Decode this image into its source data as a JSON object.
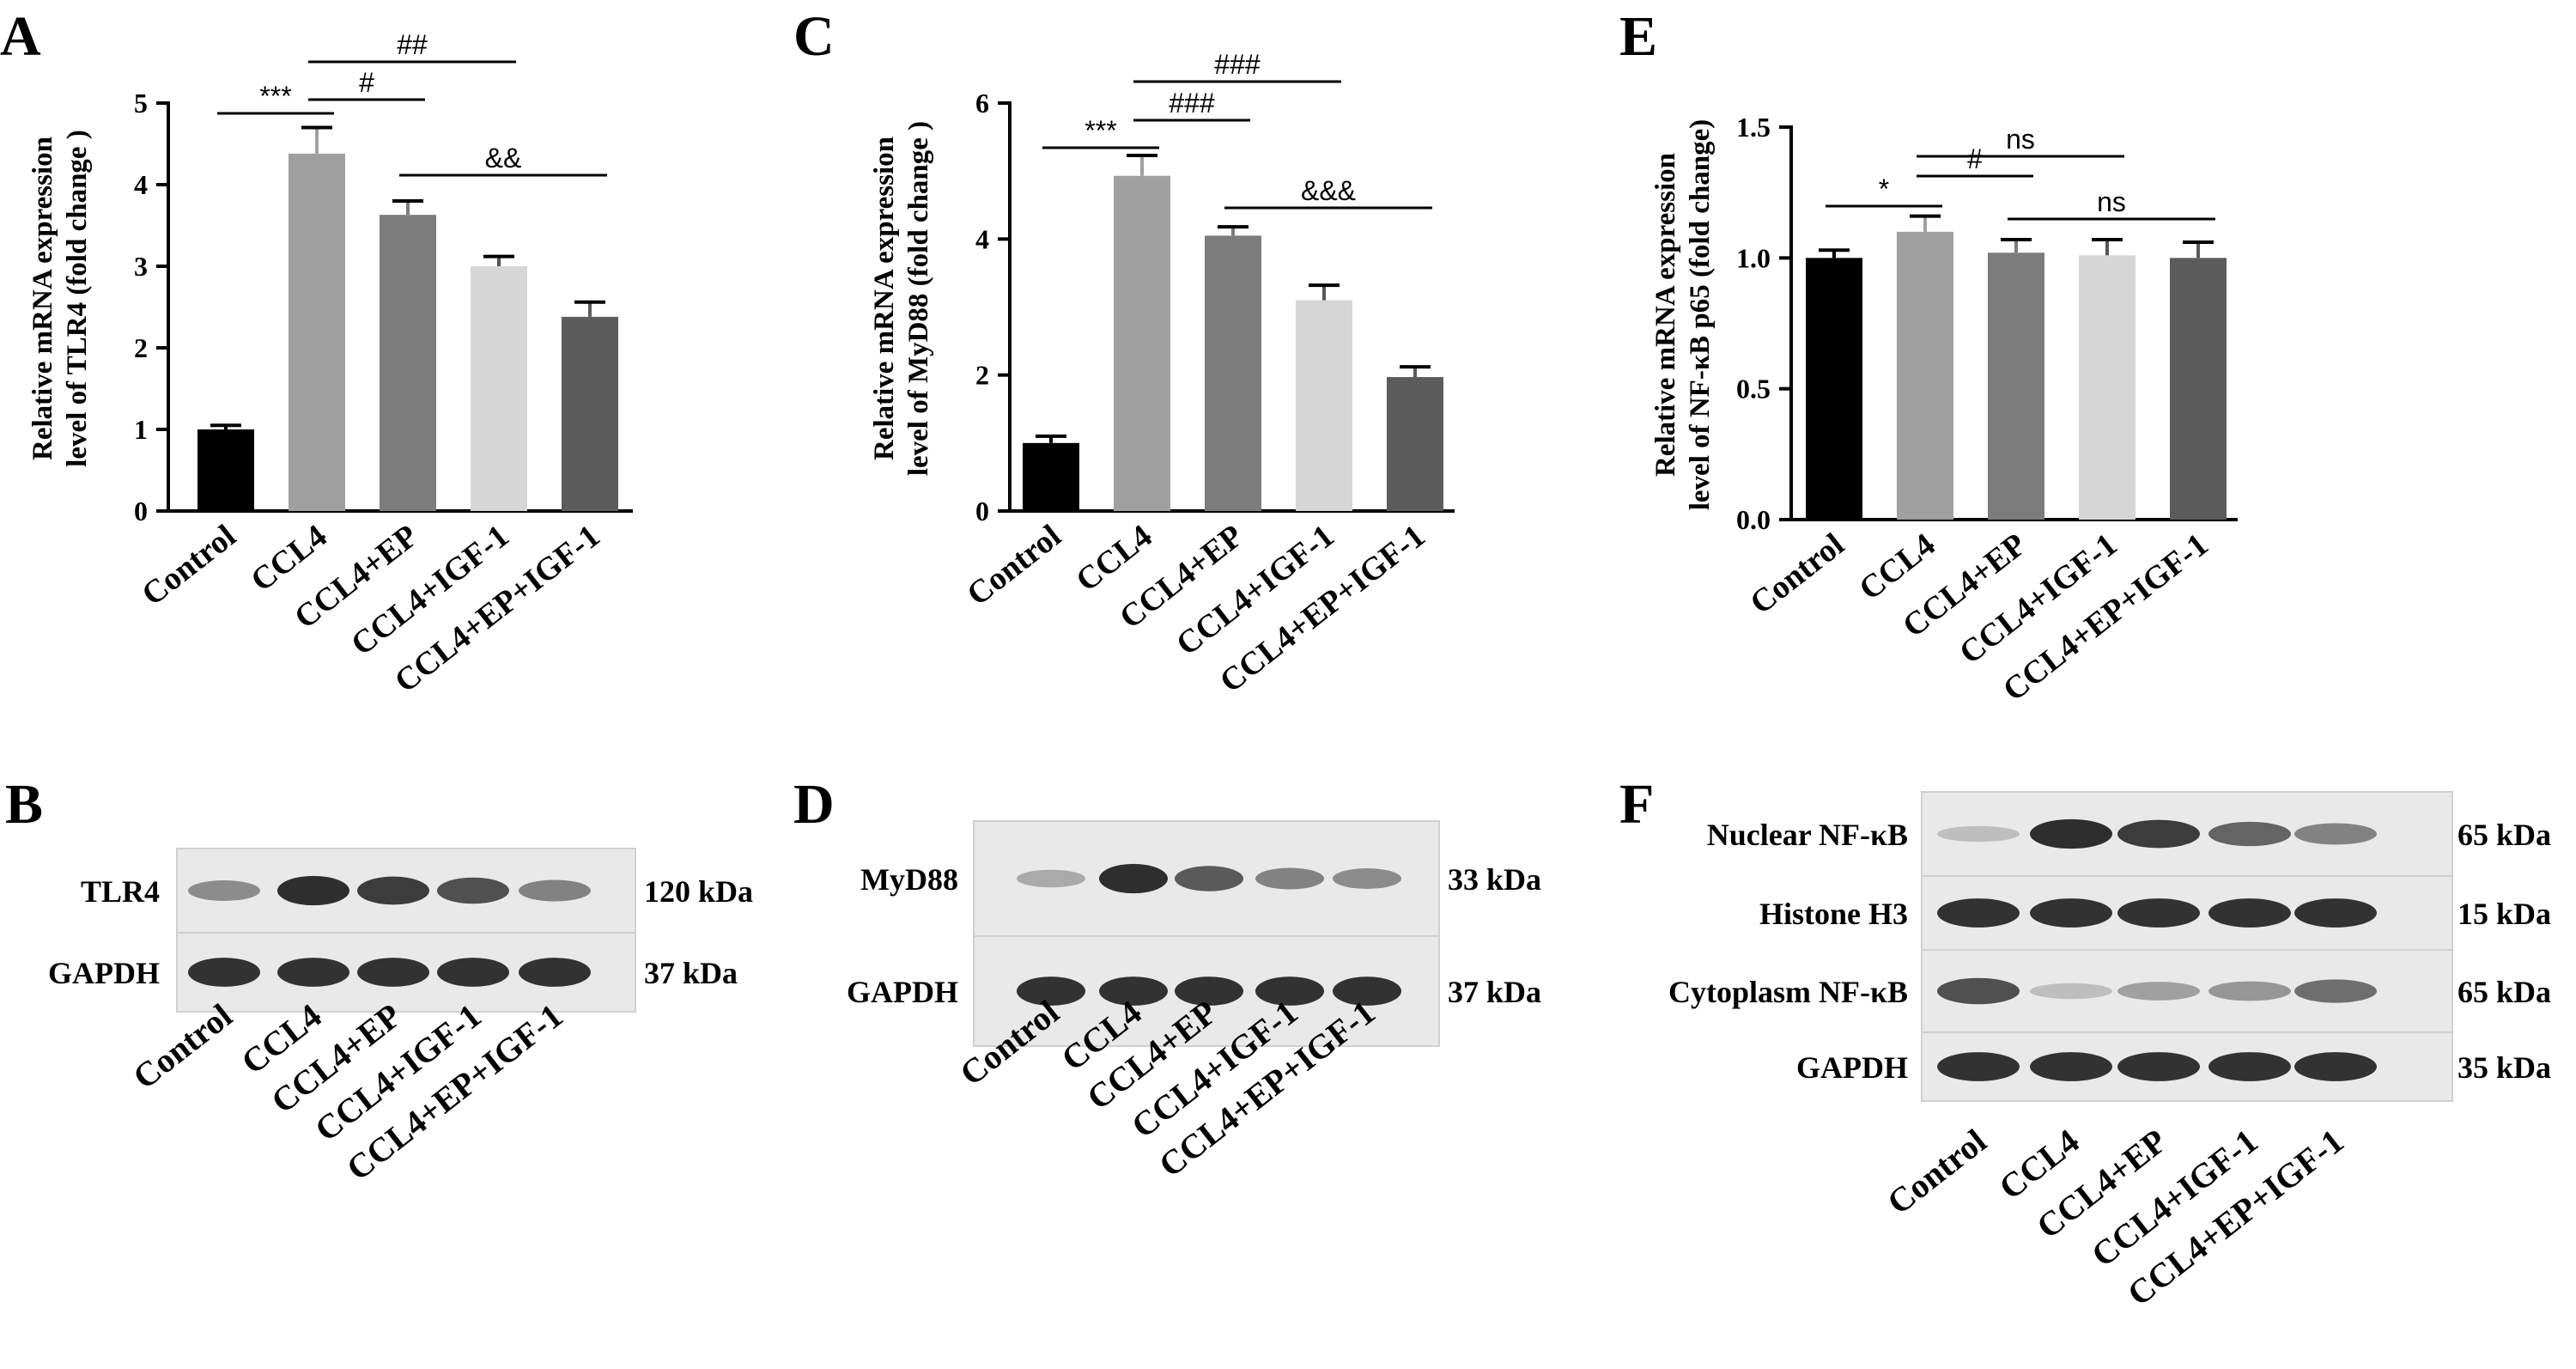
{
  "groups": [
    "Control",
    "CCL4",
    "CCL4+EP",
    "CCL4+IGF-1",
    "CCL4+EP+IGF-1"
  ],
  "bar_colors": [
    "#000000",
    "#a0a0a0",
    "#7c7c7c",
    "#d6d6d6",
    "#5c5c5c"
  ],
  "chart_data": [
    {
      "panel": "A",
      "type": "bar",
      "categories": [
        "Control",
        "CCL4",
        "CCL4+EP",
        "CCL4+IGF-1",
        "CCL4+EP+IGF-1"
      ],
      "values": [
        1.0,
        4.38,
        3.63,
        3.0,
        2.38
      ],
      "errors": [
        0.05,
        0.32,
        0.17,
        0.12,
        0.18
      ],
      "ylabel": [
        "Relative mRNA expression",
        "level of TLR4 (fold change )"
      ],
      "ylim": [
        0,
        5
      ],
      "yticks": [
        "0",
        "1",
        "2",
        "3",
        "4",
        "5"
      ],
      "significance": [
        {
          "from": 0,
          "to": 1,
          "label": "***"
        },
        {
          "from": 1,
          "to": 2,
          "label": "#"
        },
        {
          "from": 1,
          "to": 3,
          "label": "##"
        },
        {
          "from": 2,
          "to": 4,
          "label": "&&"
        }
      ]
    },
    {
      "panel": "C",
      "type": "bar",
      "categories": [
        "Control",
        "CCL4",
        "CCL4+EP",
        "CCL4+IGF-1",
        "CCL4+EP+IGF-1"
      ],
      "values": [
        1.0,
        4.93,
        4.05,
        3.1,
        1.97
      ],
      "errors": [
        0.1,
        0.3,
        0.13,
        0.22,
        0.15
      ],
      "ylabel": [
        "Relative mRNA expression",
        "level of MyD88 (fold change )"
      ],
      "ylim": [
        0,
        6
      ],
      "yticks": [
        "0",
        "2",
        "4",
        "6"
      ],
      "significance": [
        {
          "from": 0,
          "to": 1,
          "label": "***"
        },
        {
          "from": 1,
          "to": 2,
          "label": "###"
        },
        {
          "from": 1,
          "to": 3,
          "label": "###"
        },
        {
          "from": 2,
          "to": 4,
          "label": "&&&"
        }
      ]
    },
    {
      "panel": "E",
      "type": "bar",
      "categories": [
        "Control",
        "CCL4",
        "CCL4+EP",
        "CCL4+IGF-1",
        "CCL4+EP+IGF-1"
      ],
      "values": [
        1.0,
        1.1,
        1.02,
        1.01,
        1.0
      ],
      "errors": [
        0.03,
        0.06,
        0.05,
        0.06,
        0.06
      ],
      "ylabel": [
        "Relative mRNA expression",
        "level of NF-κB p65 (fold change)"
      ],
      "ylim": [
        0,
        1.5
      ],
      "yticks": [
        "0.0",
        "0.5",
        "1.0",
        "1.5"
      ],
      "significance": [
        {
          "from": 0,
          "to": 1,
          "label": "*"
        },
        {
          "from": 1,
          "to": 2,
          "label": "#"
        },
        {
          "from": 1,
          "to": 3,
          "label": "ns"
        },
        {
          "from": 2,
          "to": 4,
          "label": "ns"
        }
      ]
    }
  ],
  "blots": [
    {
      "panel": "B",
      "rows": [
        {
          "label": "TLR4",
          "kda": "120 kDa",
          "intensity": [
            0.45,
            0.92,
            0.85,
            0.75,
            0.5
          ]
        },
        {
          "label": "GAPDH",
          "kda": "37 kDa",
          "intensity": [
            0.9,
            0.9,
            0.9,
            0.9,
            0.9
          ]
        }
      ]
    },
    {
      "panel": "D",
      "rows": [
        {
          "label": "MyD88",
          "kda": "33 kDa",
          "intensity": [
            0.3,
            0.92,
            0.7,
            0.5,
            0.45
          ]
        },
        {
          "label": "GAPDH",
          "kda": "37 kDa",
          "intensity": [
            0.9,
            0.9,
            0.9,
            0.9,
            0.9
          ]
        }
      ]
    },
    {
      "panel": "F",
      "rows": [
        {
          "label": "Nuclear NF-κB",
          "kda": "65 kDa",
          "intensity": [
            0.2,
            0.92,
            0.85,
            0.65,
            0.5
          ]
        },
        {
          "label": "Histone H3",
          "kda": "15 kDa",
          "intensity": [
            0.9,
            0.9,
            0.9,
            0.9,
            0.9
          ]
        },
        {
          "label": "Cytoplasm NF-κB",
          "kda": "65 kDa",
          "intensity": [
            0.75,
            0.2,
            0.35,
            0.4,
            0.6
          ]
        },
        {
          "label": "GAPDH",
          "kda": "35 kDa",
          "intensity": [
            0.9,
            0.9,
            0.9,
            0.9,
            0.9
          ]
        }
      ]
    }
  ]
}
